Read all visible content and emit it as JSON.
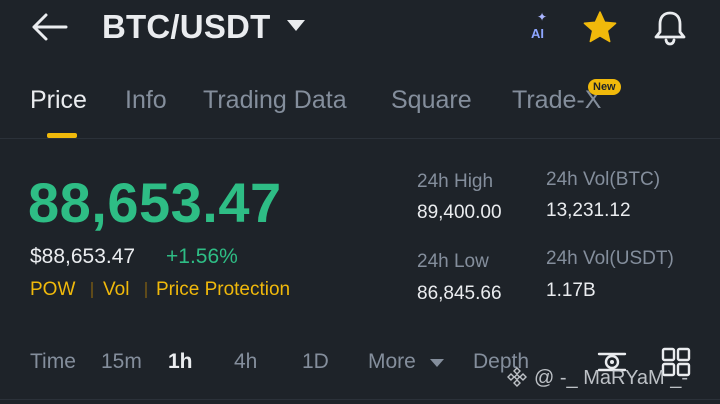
{
  "header": {
    "pair": "BTC/USDT",
    "ai_label": "AI",
    "icons": {
      "back": "arrow-left-icon",
      "favorite": "star-icon",
      "alerts": "bell-icon"
    },
    "colors": {
      "favorite": "#f0b90b"
    }
  },
  "tabs": [
    {
      "label": "Price",
      "active": true
    },
    {
      "label": "Info"
    },
    {
      "label": "Trading Data"
    },
    {
      "label": "Square"
    },
    {
      "label": "Trade-X",
      "badge": "New"
    }
  ],
  "price": {
    "last": "88,653.47",
    "fiat": "$88,653.47",
    "change": "+1.56%",
    "tags": [
      "POW",
      "Vol",
      "Price Protection"
    ],
    "colors": {
      "up": "#2ebd85",
      "tag": "#f0b90b"
    }
  },
  "stats": {
    "high_label": "24h High",
    "high_value": "89,400.00",
    "low_label": "24h Low",
    "low_value": "86,845.66",
    "vol_btc_label": "24h Vol(BTC)",
    "vol_btc_value": "13,231.12",
    "vol_usdt_label": "24h Vol(USDT)",
    "vol_usdt_value": "1.17B"
  },
  "timeframes": {
    "items": [
      "Time",
      "15m",
      "1h",
      "4h",
      "1D",
      "More",
      "Depth"
    ],
    "active": "1h"
  },
  "watermark": "@ -_ MaRYaM _-"
}
